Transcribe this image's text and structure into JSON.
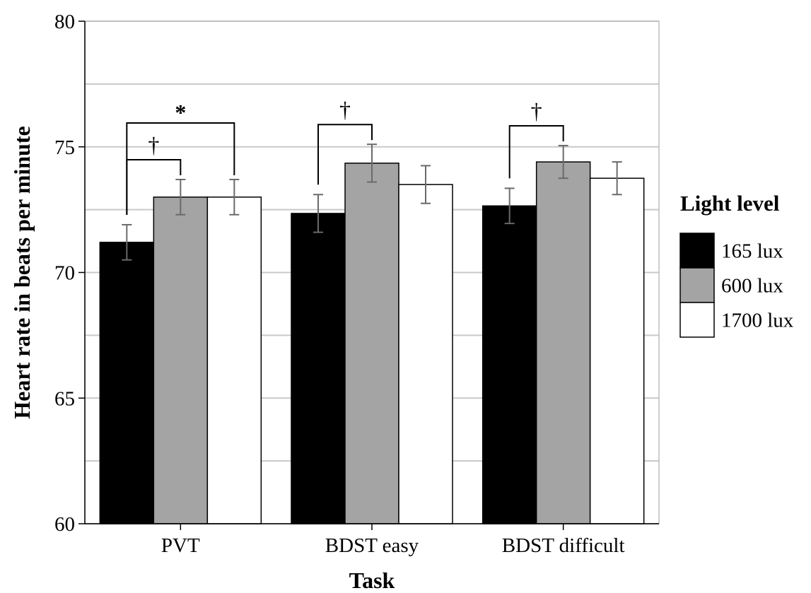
{
  "chart_data": {
    "type": "bar",
    "xlabel": "Task",
    "ylabel": "Heart rate in beats per minute",
    "ylim": [
      60,
      80
    ],
    "yticks": [
      60,
      65,
      70,
      75,
      80
    ],
    "grid": true,
    "legend": {
      "title": "Light level",
      "placement": "right"
    },
    "categories": [
      "PVT",
      "BDST easy",
      "BDST difficult"
    ],
    "series": [
      {
        "name": "165 lux",
        "color": "#000000",
        "values": [
          71.2,
          72.35,
          72.65
        ],
        "error": [
          0.7,
          0.75,
          0.7
        ]
      },
      {
        "name": "600 lux",
        "color": "#a4a4a4",
        "values": [
          73.0,
          74.35,
          74.4
        ],
        "error": [
          0.7,
          0.75,
          0.65
        ]
      },
      {
        "name": "1700 lux",
        "color": "#ffffff",
        "values": [
          73.0,
          73.5,
          73.75
        ],
        "error": [
          0.7,
          0.75,
          0.65
        ]
      }
    ],
    "annotations": [
      {
        "category": 0,
        "from_series": 0,
        "to_series": 2,
        "label": "*"
      },
      {
        "category": 0,
        "from_series": 0,
        "to_series": 1,
        "label": "†"
      },
      {
        "category": 1,
        "from_series": 0,
        "to_series": 1,
        "label": "†"
      },
      {
        "category": 2,
        "from_series": 0,
        "to_series": 1,
        "label": "†"
      }
    ]
  }
}
